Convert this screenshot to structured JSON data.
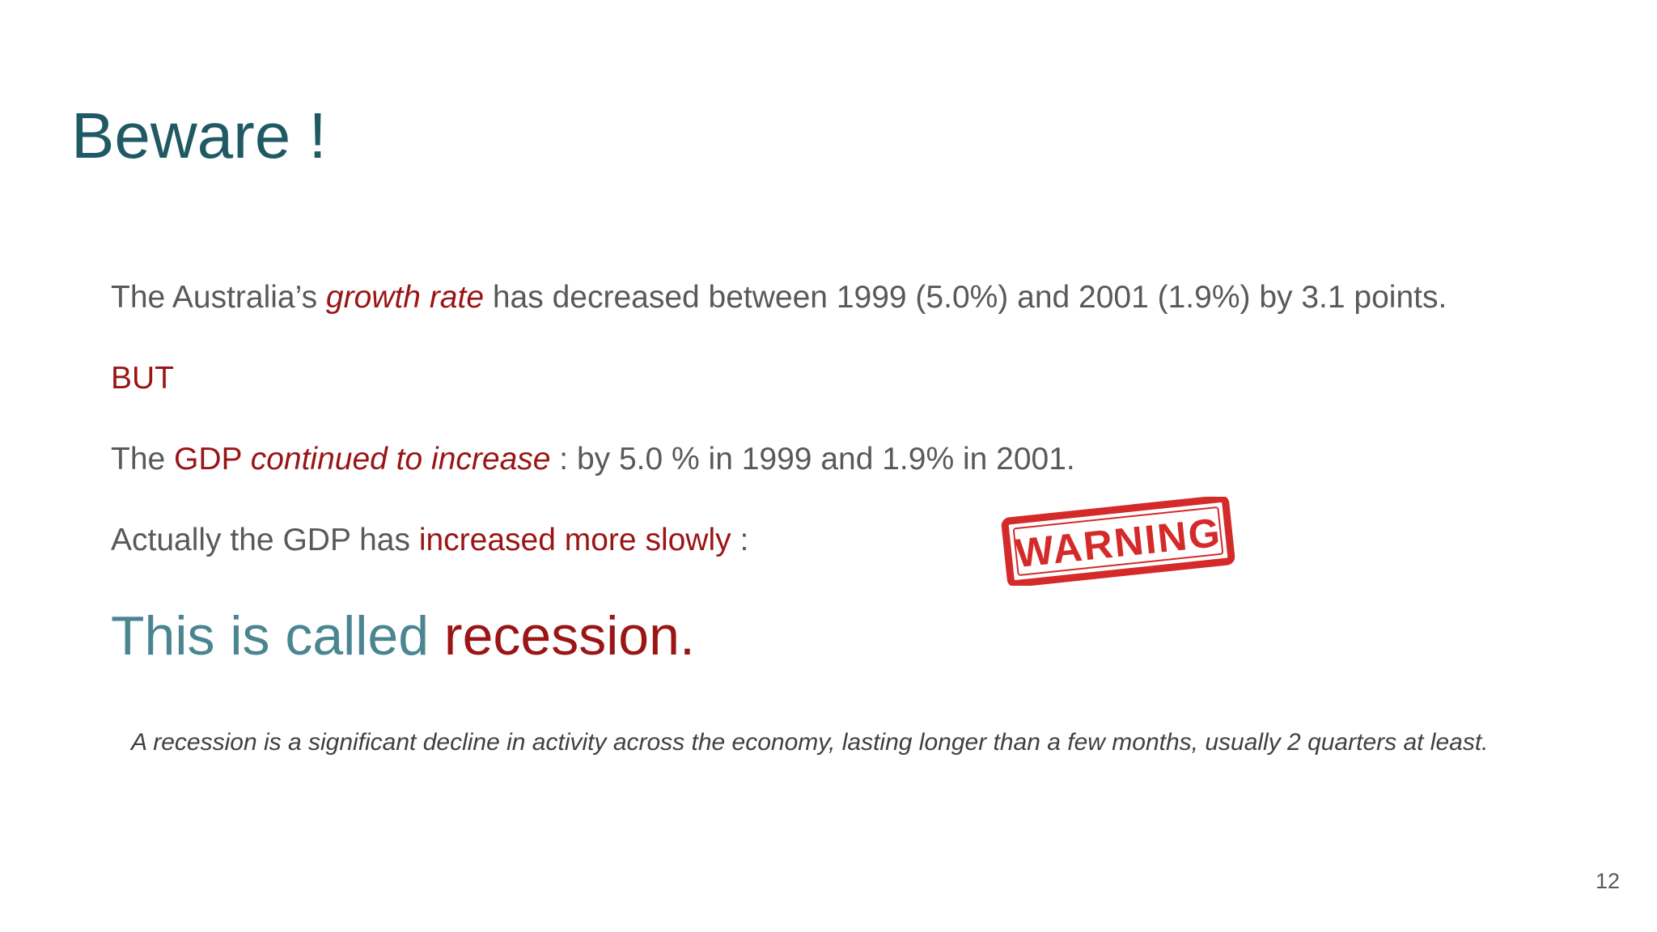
{
  "slide": {
    "title": "Beware !",
    "line1": {
      "prefix": "The Australia’s ",
      "highlight": "growth rate",
      "suffix": "  has decreased between 1999 (5.0%) and 2001 (1.9%) by 3.1 points."
    },
    "line2": {
      "text": "BUT"
    },
    "line3": {
      "prefix": "The ",
      "gdp": "GDP ",
      "highlight": "continued to increase",
      "suffix": " : by 5.0 % in 1999 and 1.9% in 2001."
    },
    "line4": {
      "prefix": "Actually the GDP has ",
      "highlight": "increased more slowly",
      "suffix": " :"
    },
    "called": {
      "prefix": "This is called  ",
      "highlight": "recession."
    },
    "definition": "A recession is a significant decline in activity across the economy, lasting longer than a few months, usually 2 quarters at least.",
    "stamp_text": "WARNING",
    "page_number": "12",
    "colors": {
      "title": "#1f5a64",
      "accent_red": "#9a1515",
      "body_text": "#595959",
      "teal_text": "#4a8690",
      "stamp_red": "#d42a2a"
    }
  }
}
